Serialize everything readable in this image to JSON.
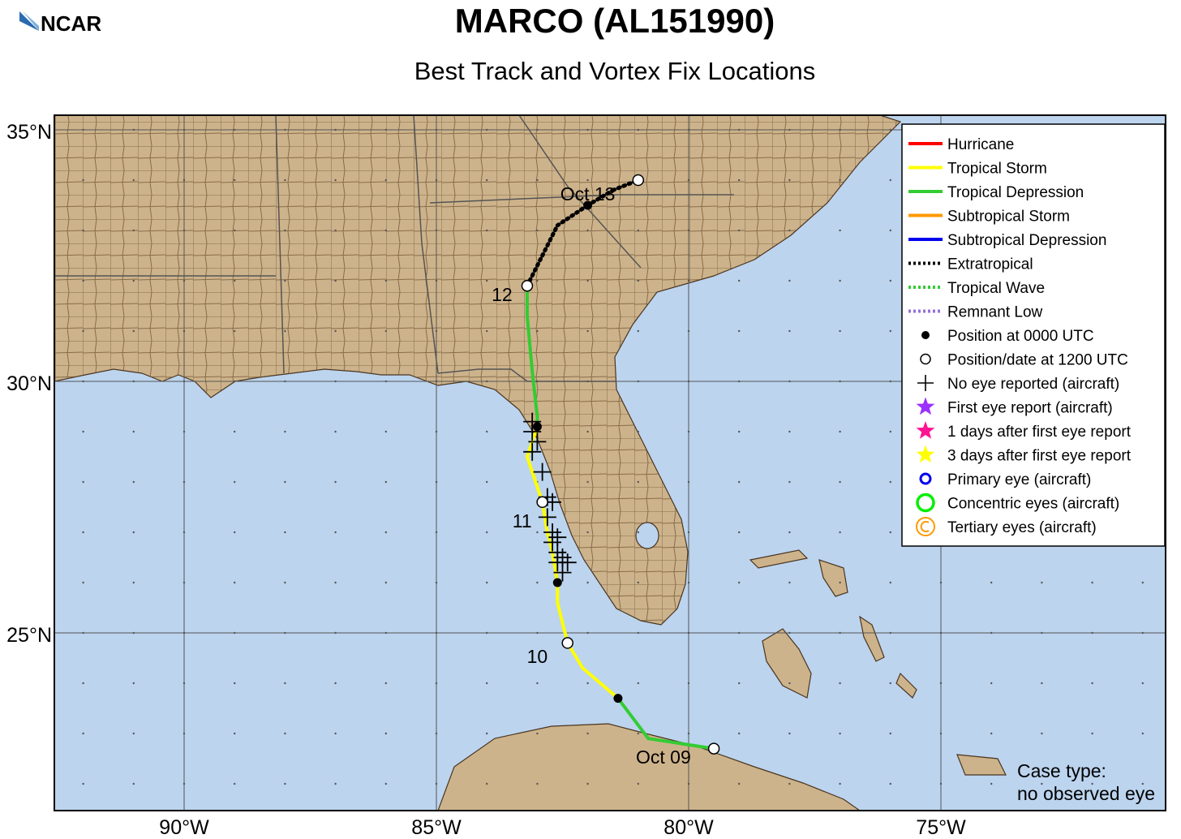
{
  "header": {
    "logo_text": "NCAR",
    "title": "MARCO (AL151990)",
    "subtitle": "Best Track and Vortex Fix Locations"
  },
  "axes": {
    "lat_labels": [
      "35°N",
      "30°N",
      "25°N"
    ],
    "lon_labels": [
      "90°W",
      "85°W",
      "80°W",
      "75°W"
    ],
    "lon_range": [
      -92.6,
      -70.6
    ],
    "lat_range": [
      21.3,
      35.2
    ]
  },
  "colors": {
    "ocean": "#bcd4ee",
    "land": "#cdb38b",
    "hurricane": "#ff0000",
    "tropical_storm": "#ffff00",
    "tropical_depression": "#33cc33",
    "subtropical_storm": "#ff9900",
    "subtropical_depression": "#0000ee",
    "extratropical": "#000000",
    "tropical_wave": "#33cc33",
    "remnant_low": "#9370db"
  },
  "legend": {
    "items": [
      {
        "label": "Hurricane",
        "symbol": "line",
        "color": "#ff0000"
      },
      {
        "label": "Tropical Storm",
        "symbol": "line",
        "color": "#ffff00"
      },
      {
        "label": "Tropical Depression",
        "symbol": "line",
        "color": "#33cc33"
      },
      {
        "label": "Subtropical Storm",
        "symbol": "line",
        "color": "#ff9900"
      },
      {
        "label": "Subtropical Depression",
        "symbol": "line",
        "color": "#0000ee"
      },
      {
        "label": "Extratropical",
        "symbol": "dotted",
        "color": "#000000"
      },
      {
        "label": "Tropical Wave",
        "symbol": "dotted",
        "color": "#33cc33"
      },
      {
        "label": "Remnant Low",
        "symbol": "dotted",
        "color": "#9370db"
      },
      {
        "label": "Position at 0000 UTC",
        "symbol": "dot",
        "color": "#000000"
      },
      {
        "label": "Position/date at 1200 UTC",
        "symbol": "circle",
        "color": "#000000"
      },
      {
        "label": "No eye reported (aircraft)",
        "symbol": "plus",
        "color": "#000000"
      },
      {
        "label": "First eye report (aircraft)",
        "symbol": "star",
        "color": "#9b30ff"
      },
      {
        "label": "1 days after first eye report",
        "symbol": "star",
        "color": "#ff1493"
      },
      {
        "label": "3 days after first eye report",
        "symbol": "star",
        "color": "#ffff00"
      },
      {
        "label": "Primary eye (aircraft)",
        "symbol": "ring",
        "color": "#0000ee"
      },
      {
        "label": "Concentric eyes (aircraft)",
        "symbol": "ring2",
        "color": "#00ee00"
      },
      {
        "label": "Tertiary eyes (aircraft)",
        "symbol": "ring3",
        "color": "#ff9900"
      }
    ]
  },
  "case_type": {
    "line1": "Case type:",
    "line2": "no observed eye"
  },
  "chart_data": {
    "type": "scatter",
    "title": "MARCO (AL151990)",
    "subtitle": "Best Track and Vortex Fix Locations",
    "track": [
      {
        "lon": -79.5,
        "lat": 22.7,
        "stage": "tropical_depression",
        "marker": "1200"
      },
      {
        "lon": -80.8,
        "lat": 22.9,
        "stage": "tropical_depression"
      },
      {
        "lon": -81.4,
        "lat": 23.7,
        "stage": "tropical_depression",
        "marker": "0000"
      },
      {
        "lon": -82.1,
        "lat": 24.3,
        "stage": "tropical_storm"
      },
      {
        "lon": -82.4,
        "lat": 24.8,
        "stage": "tropical_storm",
        "marker": "1200"
      },
      {
        "lon": -82.6,
        "lat": 25.6,
        "stage": "tropical_storm"
      },
      {
        "lon": -82.6,
        "lat": 26.0,
        "stage": "tropical_storm",
        "marker": "0000"
      },
      {
        "lon": -82.7,
        "lat": 26.6,
        "stage": "tropical_storm"
      },
      {
        "lon": -82.8,
        "lat": 27.0,
        "stage": "tropical_storm"
      },
      {
        "lon": -82.9,
        "lat": 27.6,
        "stage": "tropical_storm",
        "marker": "1200"
      },
      {
        "lon": -83.2,
        "lat": 28.5,
        "stage": "tropical_storm"
      },
      {
        "lon": -83.0,
        "lat": 29.1,
        "stage": "tropical_storm",
        "marker": "0000"
      },
      {
        "lon": -83.0,
        "lat": 29.3,
        "stage": "tropical_depression"
      },
      {
        "lon": -83.1,
        "lat": 30.2,
        "stage": "tropical_depression"
      },
      {
        "lon": -83.2,
        "lat": 31.3,
        "stage": "tropical_depression"
      },
      {
        "lon": -83.2,
        "lat": 31.9,
        "stage": "tropical_depression",
        "marker": "1200"
      },
      {
        "lon": -82.9,
        "lat": 32.5,
        "stage": "extratropical"
      },
      {
        "lon": -82.6,
        "lat": 33.1,
        "stage": "extratropical"
      },
      {
        "lon": -82.0,
        "lat": 33.5,
        "stage": "extratropical",
        "marker": "0000"
      },
      {
        "lon": -81.5,
        "lat": 33.8,
        "stage": "extratropical"
      },
      {
        "lon": -81.0,
        "lat": 34.0,
        "stage": "extratropical",
        "marker": "1200"
      }
    ],
    "date_labels": [
      {
        "text": "Oct 09",
        "lon": -80.5,
        "lat": 22.4
      },
      {
        "text": "10",
        "lon": -83.0,
        "lat": 24.4
      },
      {
        "text": "11",
        "lon": -83.3,
        "lat": 27.1
      },
      {
        "text": "12",
        "lon": -83.7,
        "lat": 31.6
      },
      {
        "text": "Oct 13",
        "lon": -82.0,
        "lat": 33.6
      }
    ],
    "aircraft_fixes_no_eye": [
      {
        "lon": -83.1,
        "lat": 29.2
      },
      {
        "lon": -83.1,
        "lat": 29.0
      },
      {
        "lon": -83.0,
        "lat": 28.8
      },
      {
        "lon": -83.1,
        "lat": 28.6
      },
      {
        "lon": -82.9,
        "lat": 28.2
      },
      {
        "lon": -82.8,
        "lat": 27.7
      },
      {
        "lon": -82.7,
        "lat": 27.6
      },
      {
        "lon": -82.8,
        "lat": 27.3
      },
      {
        "lon": -82.7,
        "lat": 27.0
      },
      {
        "lon": -82.6,
        "lat": 26.9
      },
      {
        "lon": -82.7,
        "lat": 26.8
      },
      {
        "lon": -82.6,
        "lat": 26.6
      },
      {
        "lon": -82.5,
        "lat": 26.5
      },
      {
        "lon": -82.6,
        "lat": 26.4
      },
      {
        "lon": -82.4,
        "lat": 26.4
      },
      {
        "lon": -82.5,
        "lat": 26.2
      }
    ],
    "grid": true
  }
}
